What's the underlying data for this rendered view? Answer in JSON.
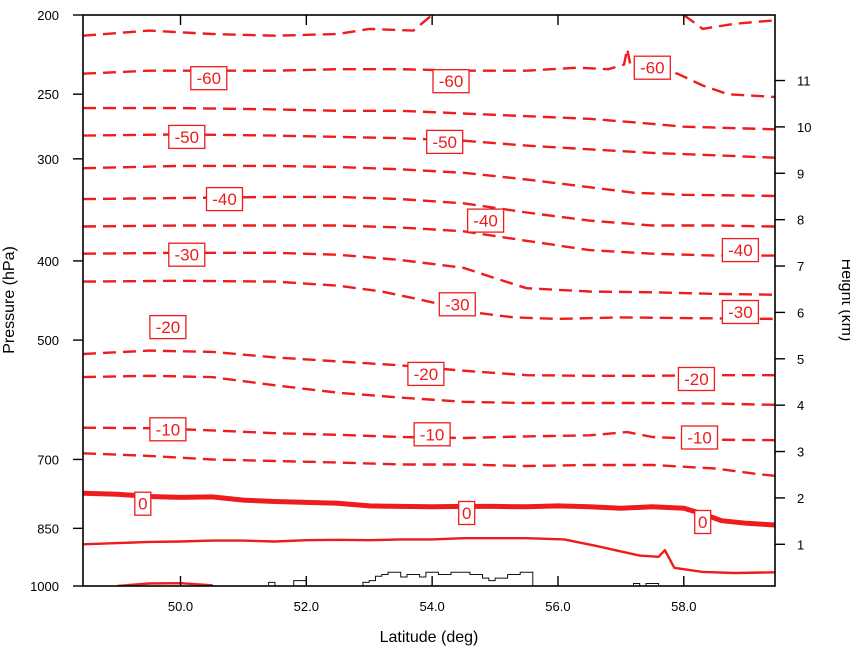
{
  "chart_data": {
    "type": "contour",
    "xlabel": "Latitude (deg)",
    "ylabel_left": "Pressure (hPa)",
    "ylabel_right": "Height (km)",
    "xlim": [
      48.45,
      59.45
    ],
    "ylim_pressure": [
      1000,
      200
    ],
    "x_ticks": [
      50,
      52,
      54,
      56,
      58
    ],
    "x_tick_labels": [
      "50.0",
      "52.0",
      "54.0",
      "56.0",
      "58.0"
    ],
    "left_ticks": [
      200,
      250,
      300,
      400,
      500,
      700,
      850,
      1000
    ],
    "left_tick_labels": [
      "200",
      "250",
      "300",
      "400",
      "500",
      "700",
      "850",
      "1000"
    ],
    "right_ticks": [
      1,
      2,
      3,
      4,
      5,
      6,
      7,
      8,
      9,
      10,
      11
    ],
    "right_tick_labels": [
      "1",
      "2",
      "3",
      "4",
      "5",
      "6",
      "7",
      "8",
      "9",
      "10",
      "11"
    ],
    "colors": {
      "contour": "#ee1c1c",
      "terrain": "#111111",
      "axis": "#000000"
    },
    "contours": [
      {
        "level": "-65",
        "style": "dashed",
        "points": [
          [
            48.45,
            212
          ],
          [
            49.5,
            209
          ],
          [
            50.5,
            211
          ],
          [
            51.5,
            212
          ],
          [
            52.5,
            211
          ],
          [
            53,
            208
          ],
          [
            53.7,
            209
          ],
          [
            54.0,
            200
          ]
        ]
      },
      {
        "level": "-65",
        "style": "dashed",
        "points": [
          [
            58.0,
            200
          ],
          [
            58.3,
            208
          ],
          [
            58.8,
            205
          ],
          [
            59.45,
            203
          ]
        ]
      },
      {
        "level": "-60",
        "style": "dashed",
        "points": [
          [
            48.45,
            236
          ],
          [
            49.5,
            234
          ],
          [
            50.5,
            234
          ],
          [
            51.5,
            234
          ],
          [
            52.5,
            233
          ],
          [
            53.5,
            233
          ],
          [
            54.5,
            234
          ],
          [
            55.5,
            234
          ],
          [
            56.3,
            232
          ],
          [
            56.8,
            233
          ],
          [
            57.05,
            230
          ],
          [
            57.1,
            220
          ],
          [
            57.15,
            230
          ],
          [
            57.5,
            232
          ],
          [
            57.9,
            236
          ],
          [
            58.3,
            244
          ],
          [
            58.7,
            250
          ],
          [
            59.45,
            252
          ]
        ]
      },
      {
        "level": "-55",
        "style": "dashed",
        "points": [
          [
            48.45,
            260
          ],
          [
            50,
            260
          ],
          [
            51.5,
            261
          ],
          [
            52.5,
            262
          ],
          [
            53.5,
            262
          ],
          [
            54.5,
            264
          ],
          [
            55.5,
            266
          ],
          [
            56.5,
            268
          ],
          [
            57.3,
            271
          ],
          [
            58,
            274
          ],
          [
            59.45,
            276
          ]
        ]
      },
      {
        "level": "-50",
        "style": "dashed",
        "points": [
          [
            48.45,
            281
          ],
          [
            50,
            280
          ],
          [
            51.5,
            281
          ],
          [
            52.5,
            282
          ],
          [
            53.5,
            283
          ],
          [
            54.5,
            285
          ],
          [
            55.5,
            289
          ],
          [
            56.5,
            292
          ],
          [
            57.5,
            295
          ],
          [
            58.5,
            297
          ],
          [
            59.45,
            299
          ]
        ]
      },
      {
        "level": "-45",
        "style": "dashed",
        "points": [
          [
            48.45,
            308
          ],
          [
            50,
            306
          ],
          [
            51.5,
            306
          ],
          [
            52.5,
            307
          ],
          [
            53.5,
            309
          ],
          [
            54.5,
            312
          ],
          [
            55.5,
            318
          ],
          [
            56.5,
            325
          ],
          [
            57.2,
            330
          ],
          [
            58,
            332
          ],
          [
            59.45,
            333
          ]
        ]
      },
      {
        "level": "-40",
        "style": "dashed",
        "points": [
          [
            48.45,
            336
          ],
          [
            50,
            335
          ],
          [
            51.5,
            334
          ],
          [
            52.5,
            334
          ],
          [
            53.5,
            336
          ],
          [
            54.5,
            340
          ],
          [
            55.5,
            349
          ],
          [
            56.5,
            357
          ],
          [
            57.5,
            362
          ],
          [
            58.5,
            362
          ],
          [
            59.45,
            363
          ]
        ]
      },
      {
        "level": "-35",
        "style": "dashed",
        "points": [
          [
            48.45,
            363
          ],
          [
            50,
            362
          ],
          [
            51.5,
            362
          ],
          [
            52.5,
            362
          ],
          [
            53.5,
            364
          ],
          [
            54.5,
            368
          ],
          [
            55.5,
            378
          ],
          [
            56.5,
            388
          ],
          [
            57.5,
            392
          ],
          [
            58.5,
            394
          ],
          [
            59.45,
            394
          ]
        ]
      },
      {
        "level": "-30",
        "style": "dashed",
        "points": [
          [
            48.45,
            392
          ],
          [
            50,
            391
          ],
          [
            51.5,
            391
          ],
          [
            52.5,
            393
          ],
          [
            53.5,
            399
          ],
          [
            54.5,
            408
          ],
          [
            55,
            420
          ],
          [
            55.5,
            432
          ],
          [
            56.5,
            436
          ],
          [
            57.5,
            437
          ],
          [
            58.5,
            439
          ],
          [
            59.45,
            440
          ]
        ]
      },
      {
        "level": "-25",
        "style": "dashed",
        "points": [
          [
            48.45,
            424
          ],
          [
            50,
            423
          ],
          [
            51.5,
            424
          ],
          [
            52.5,
            429
          ],
          [
            53.2,
            436
          ],
          [
            53.8,
            446
          ],
          [
            54.2,
            453
          ],
          [
            54.6,
            462
          ],
          [
            55.3,
            469
          ],
          [
            56,
            471
          ],
          [
            57,
            469
          ],
          [
            58,
            470
          ],
          [
            59.45,
            471
          ]
        ]
      },
      {
        "level": "-20",
        "style": "dashed",
        "points": [
          [
            48.45,
            520
          ],
          [
            49.5,
            515
          ],
          [
            50.5,
            517
          ],
          [
            51.5,
            525
          ],
          [
            52.5,
            531
          ],
          [
            53.5,
            537
          ],
          [
            54.5,
            545
          ],
          [
            55.5,
            552
          ],
          [
            56.5,
            553
          ],
          [
            57.5,
            553
          ],
          [
            58.5,
            552
          ],
          [
            59.45,
            552
          ]
        ]
      },
      {
        "level": "-15",
        "style": "dashed",
        "points": [
          [
            48.45,
            555
          ],
          [
            49.5,
            553
          ],
          [
            50.5,
            555
          ],
          [
            51.5,
            568
          ],
          [
            52.5,
            580
          ],
          [
            53.5,
            588
          ],
          [
            54.5,
            595
          ],
          [
            55.5,
            597
          ],
          [
            56.5,
            597
          ],
          [
            57.5,
            597
          ],
          [
            58.5,
            598
          ],
          [
            59.45,
            600
          ]
        ]
      },
      {
        "level": "-10",
        "style": "dashed",
        "points": [
          [
            48.45,
            640
          ],
          [
            49.5,
            641
          ],
          [
            50.5,
            645
          ],
          [
            51.5,
            650
          ],
          [
            52.5,
            653
          ],
          [
            53.5,
            657
          ],
          [
            54.5,
            659
          ],
          [
            55.5,
            656
          ],
          [
            56.5,
            654
          ],
          [
            57.1,
            648
          ],
          [
            57.5,
            657
          ],
          [
            58.5,
            662
          ],
          [
            59.45,
            663
          ]
        ]
      },
      {
        "level": "-5",
        "style": "dashed",
        "points": [
          [
            48.45,
            688
          ],
          [
            49.5,
            693
          ],
          [
            50.5,
            700
          ],
          [
            51.5,
            703
          ],
          [
            52.5,
            706
          ],
          [
            53.5,
            710
          ],
          [
            54.5,
            710
          ],
          [
            55.5,
            713
          ],
          [
            56.5,
            711
          ],
          [
            57.5,
            711
          ],
          [
            58.5,
            718
          ],
          [
            59.2,
            730
          ],
          [
            59.45,
            733
          ]
        ]
      },
      {
        "level": "0",
        "style": "thick",
        "points": [
          [
            48.45,
            770
          ],
          [
            49,
            772
          ],
          [
            49.5,
            777
          ],
          [
            50,
            779
          ],
          [
            50.5,
            778
          ],
          [
            51,
            785
          ],
          [
            51.5,
            788
          ],
          [
            52,
            790
          ],
          [
            52.5,
            792
          ],
          [
            53,
            798
          ],
          [
            53.5,
            799
          ],
          [
            54,
            800
          ],
          [
            54.5,
            799
          ],
          [
            55,
            799
          ],
          [
            55.5,
            800
          ],
          [
            56,
            798
          ],
          [
            56.5,
            800
          ],
          [
            57,
            803
          ],
          [
            57.5,
            800
          ],
          [
            58,
            803
          ],
          [
            58.3,
            816
          ],
          [
            58.6,
            832
          ],
          [
            59,
            838
          ],
          [
            59.45,
            842
          ]
        ]
      },
      {
        "level": "5",
        "style": "solid",
        "points": [
          [
            48.45,
            889
          ],
          [
            49,
            886
          ],
          [
            49.5,
            883
          ],
          [
            50,
            882
          ],
          [
            50.5,
            880
          ],
          [
            51,
            880
          ],
          [
            51.5,
            882
          ],
          [
            52,
            879
          ],
          [
            52.5,
            878
          ],
          [
            53,
            879
          ],
          [
            53.5,
            877
          ],
          [
            54,
            877
          ],
          [
            54.5,
            874
          ],
          [
            55,
            874
          ],
          [
            55.5,
            874
          ],
          [
            56.1,
            877
          ],
          [
            56.6,
            893
          ],
          [
            57,
            907
          ],
          [
            57.3,
            918
          ],
          [
            57.6,
            921
          ],
          [
            57.7,
            904
          ],
          [
            57.85,
            950
          ],
          [
            58.3,
            961
          ],
          [
            58.8,
            964
          ],
          [
            59.45,
            962
          ]
        ]
      },
      {
        "level": "10",
        "style": "solid",
        "points": [
          [
            49.0,
            1000
          ],
          [
            49.5,
            993
          ],
          [
            50.0,
            992
          ],
          [
            50.5,
            998
          ],
          [
            50.5,
            1000
          ]
        ]
      }
    ],
    "contour_labels": [
      {
        "text": "-60",
        "x": 50.45,
        "p": 239
      },
      {
        "text": "-60",
        "x": 54.3,
        "p": 241
      },
      {
        "text": "-60",
        "x": 57.5,
        "p": 232
      },
      {
        "text": "-50",
        "x": 50.1,
        "p": 282
      },
      {
        "text": "-50",
        "x": 54.2,
        "p": 286
      },
      {
        "text": "-40",
        "x": 50.7,
        "p": 336
      },
      {
        "text": "-40",
        "x": 54.85,
        "p": 357
      },
      {
        "text": "-40",
        "x": 58.9,
        "p": 388
      },
      {
        "text": "-30",
        "x": 50.1,
        "p": 393
      },
      {
        "text": "-30",
        "x": 54.4,
        "p": 452
      },
      {
        "text": "-30",
        "x": 58.9,
        "p": 462
      },
      {
        "text": "-20",
        "x": 49.8,
        "p": 482
      },
      {
        "text": "-20",
        "x": 53.9,
        "p": 550
      },
      {
        "text": "-20",
        "x": 58.2,
        "p": 558
      },
      {
        "text": "-10",
        "x": 49.8,
        "p": 643
      },
      {
        "text": "-10",
        "x": 54.0,
        "p": 652
      },
      {
        "text": "-10",
        "x": 58.25,
        "p": 658
      },
      {
        "text": "0",
        "x": 49.4,
        "p": 793
      },
      {
        "text": "0",
        "x": 54.55,
        "p": 814
      },
      {
        "text": "0",
        "x": 58.3,
        "p": 835
      }
    ],
    "terrain_outline": [
      [
        51.4,
        1000
      ],
      [
        51.4,
        990
      ],
      [
        51.5,
        990
      ],
      [
        51.5,
        1000
      ],
      [
        51.8,
        1000
      ],
      [
        51.8,
        985
      ],
      [
        52.0,
        985
      ],
      [
        52.0,
        1000
      ],
      [
        52.9,
        1000
      ],
      [
        52.9,
        990
      ],
      [
        53.0,
        990
      ],
      [
        53.0,
        985
      ],
      [
        53.1,
        985
      ],
      [
        53.1,
        973
      ],
      [
        53.2,
        973
      ],
      [
        53.2,
        968
      ],
      [
        53.3,
        968
      ],
      [
        53.3,
        962
      ],
      [
        53.5,
        962
      ],
      [
        53.5,
        975
      ],
      [
        53.6,
        975
      ],
      [
        53.6,
        968
      ],
      [
        53.8,
        968
      ],
      [
        53.8,
        975
      ],
      [
        53.9,
        975
      ],
      [
        53.9,
        962
      ],
      [
        54.1,
        962
      ],
      [
        54.1,
        968
      ],
      [
        54.3,
        968
      ],
      [
        54.3,
        962
      ],
      [
        54.6,
        962
      ],
      [
        54.6,
        968
      ],
      [
        54.8,
        968
      ],
      [
        54.8,
        978
      ],
      [
        54.9,
        978
      ],
      [
        54.9,
        985
      ],
      [
        55.0,
        985
      ],
      [
        55.0,
        978
      ],
      [
        55.2,
        978
      ],
      [
        55.2,
        968
      ],
      [
        55.4,
        968
      ],
      [
        55.4,
        962
      ],
      [
        55.6,
        962
      ],
      [
        55.6,
        1000
      ],
      [
        57.2,
        1000
      ],
      [
        57.2,
        993
      ],
      [
        57.3,
        993
      ],
      [
        57.3,
        1000
      ],
      [
        57.4,
        1000
      ],
      [
        57.4,
        993
      ],
      [
        57.6,
        993
      ],
      [
        57.6,
        1000
      ]
    ]
  }
}
